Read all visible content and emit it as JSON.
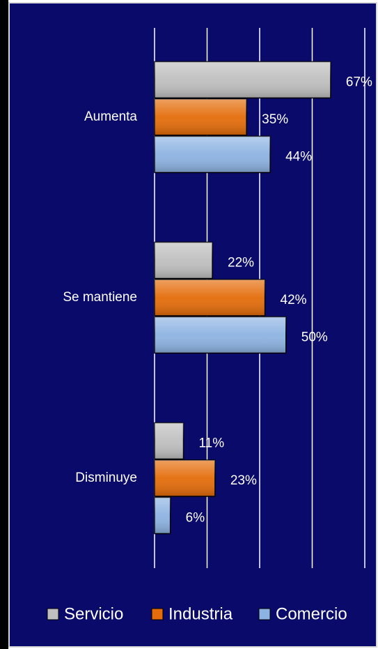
{
  "chart_data": {
    "type": "hbar",
    "categories": [
      "Aumenta",
      "Se mantiene",
      "Disminuye"
    ],
    "series": [
      {
        "name": "Servicio",
        "color": "#bfbfbf",
        "values": [
          67,
          22,
          11
        ],
        "value_labels": [
          "67%",
          "22%",
          "11%"
        ]
      },
      {
        "name": "Industria",
        "color": "#e46c0a",
        "values": [
          35,
          42,
          23
        ],
        "value_labels": [
          "35%",
          "42%",
          "23%"
        ]
      },
      {
        "name": "Comercio",
        "color": "#8db3e2",
        "values": [
          44,
          50,
          6
        ],
        "value_labels": [
          "44%",
          "50%",
          "6%"
        ]
      }
    ],
    "xlim": [
      0,
      80
    ],
    "xticks": [
      0,
      20,
      40,
      60,
      80
    ],
    "grid": true,
    "legend": "bottom"
  }
}
